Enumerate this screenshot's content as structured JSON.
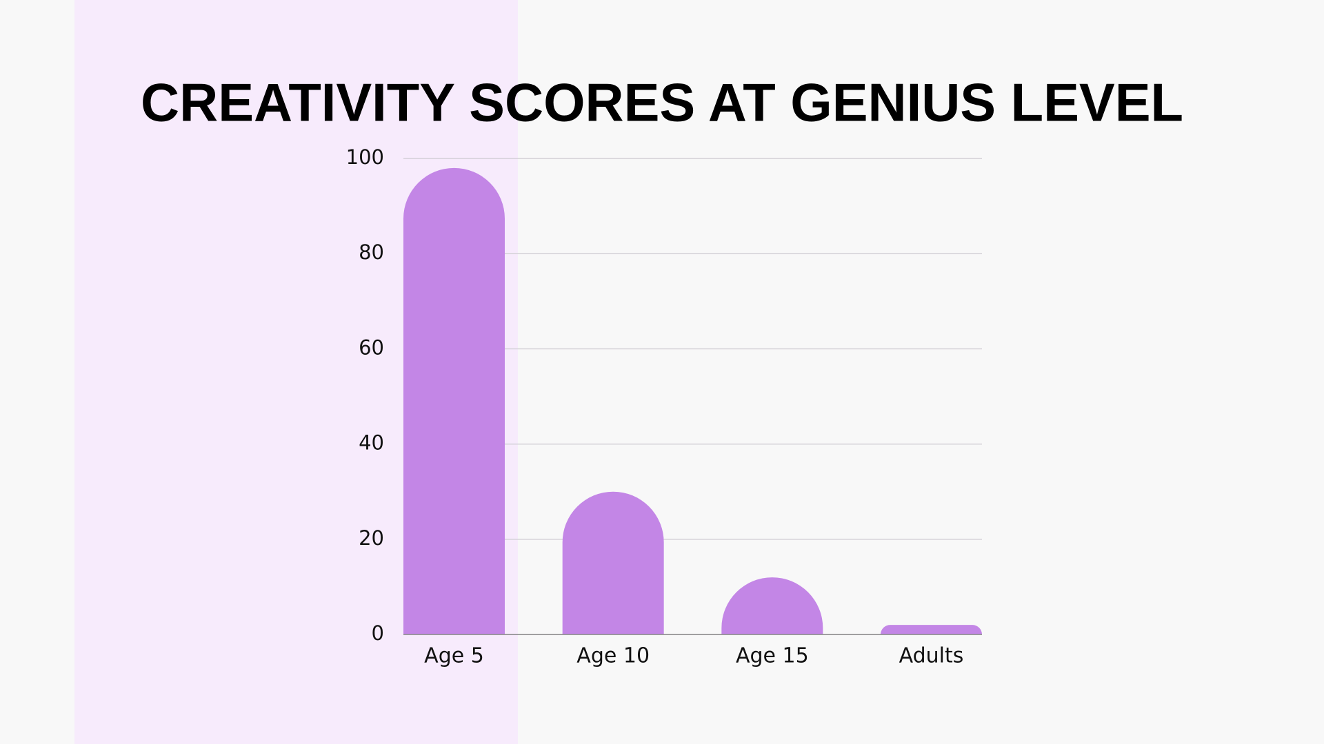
{
  "chart_data": {
    "type": "bar",
    "title": "CREATIVITY SCORES AT GENIUS LEVEL",
    "categories": [
      "Age 5",
      "Age 10",
      "Age 15",
      "Adults"
    ],
    "values": [
      98,
      30,
      12,
      2
    ],
    "color": "#c386e6",
    "ylim": [
      0,
      100
    ],
    "yticks": [
      0,
      20,
      40,
      60,
      80,
      100
    ],
    "grid": true
  }
}
